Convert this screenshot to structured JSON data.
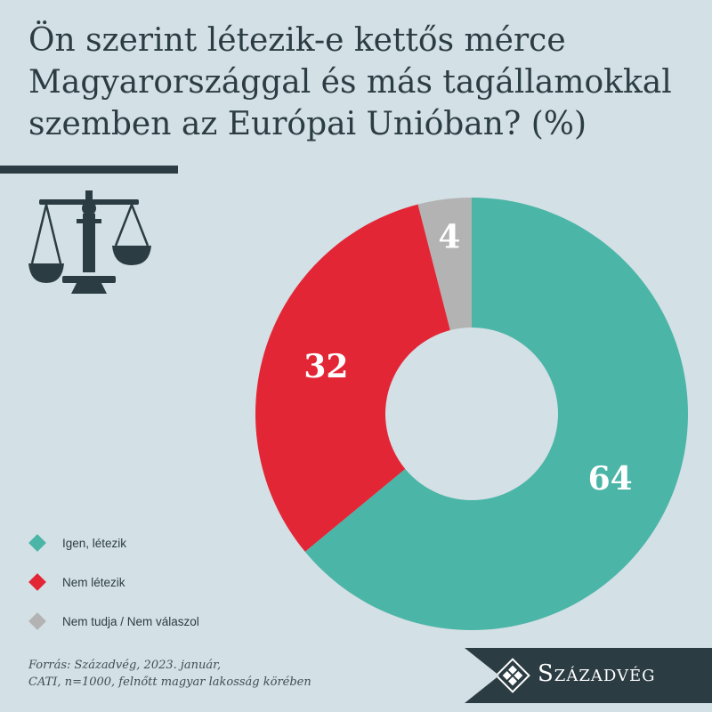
{
  "title": {
    "line1": "Ön szerint létezik-e kettős mérce",
    "line2": "Magyarországgal és más tagállamokkal",
    "line3": "szemben az Európai Unióban? (%)"
  },
  "icons": {
    "scale": "scale-of-justice-icon",
    "brand_logo": "diamond-logo-icon"
  },
  "colors": {
    "background": "#d3e0e5",
    "dark": "#2b3d43",
    "series": [
      "#4bb5a7",
      "#e32636",
      "#b3b3b3"
    ]
  },
  "chart_data": {
    "type": "pie",
    "variant": "donut",
    "categories": [
      "Igen, létezik",
      "Nem létezik",
      "Nem tudja / Nem válaszol"
    ],
    "values": [
      64,
      32,
      4
    ],
    "data_labels": [
      "64",
      "32",
      "4"
    ],
    "unit": "%",
    "start_angle_deg": 0,
    "direction": "clockwise",
    "legend_position": "bottom-left"
  },
  "source": {
    "line1": "Forrás: Századvég, 2023. január,",
    "line2": "CATI, n=1000, felnőtt magyar lakosság körében"
  },
  "brand": {
    "name": "Századvég"
  }
}
